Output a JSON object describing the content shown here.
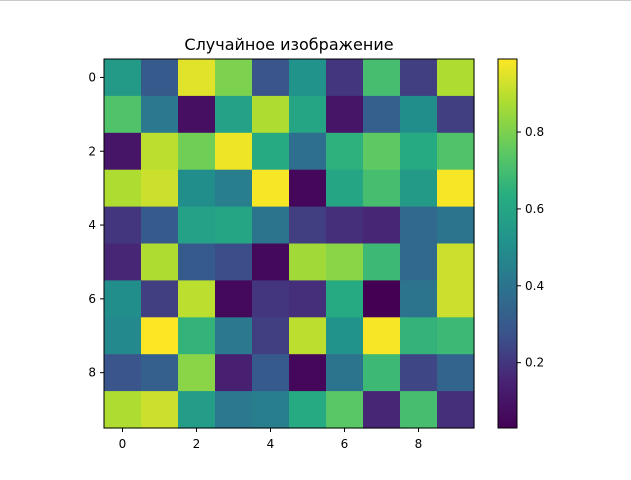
{
  "chart_data": {
    "type": "heatmap",
    "title": "Случайное изображение",
    "xlabel": "",
    "ylabel": "",
    "colormap": "viridis",
    "x_ticks": [
      "0",
      "2",
      "4",
      "6",
      "8"
    ],
    "y_ticks": [
      "0",
      "2",
      "4",
      "6",
      "8"
    ],
    "colorbar_ticks": [
      "0.2",
      "0.4",
      "0.6",
      "0.8"
    ],
    "colorbar_range": [
      0.03,
      0.99
    ],
    "grid": false,
    "values": [
      [
        0.55,
        0.3,
        0.95,
        0.8,
        0.28,
        0.52,
        0.2,
        0.7,
        0.22,
        0.88
      ],
      [
        0.72,
        0.42,
        0.08,
        0.58,
        0.88,
        0.6,
        0.1,
        0.32,
        0.5,
        0.22
      ],
      [
        0.1,
        0.9,
        0.78,
        0.97,
        0.62,
        0.38,
        0.65,
        0.75,
        0.62,
        0.72
      ],
      [
        0.88,
        0.92,
        0.5,
        0.44,
        0.98,
        0.05,
        0.6,
        0.7,
        0.55,
        0.98
      ],
      [
        0.2,
        0.3,
        0.58,
        0.6,
        0.4,
        0.22,
        0.18,
        0.16,
        0.36,
        0.4
      ],
      [
        0.16,
        0.88,
        0.3,
        0.26,
        0.06,
        0.86,
        0.82,
        0.68,
        0.36,
        0.92
      ],
      [
        0.5,
        0.22,
        0.9,
        0.06,
        0.2,
        0.18,
        0.62,
        0.03,
        0.4,
        0.92
      ],
      [
        0.48,
        0.99,
        0.66,
        0.42,
        0.22,
        0.9,
        0.52,
        0.98,
        0.66,
        0.68
      ],
      [
        0.28,
        0.32,
        0.82,
        0.14,
        0.3,
        0.05,
        0.4,
        0.68,
        0.24,
        0.34
      ],
      [
        0.88,
        0.92,
        0.56,
        0.42,
        0.44,
        0.62,
        0.74,
        0.16,
        0.7,
        0.18
      ]
    ]
  }
}
